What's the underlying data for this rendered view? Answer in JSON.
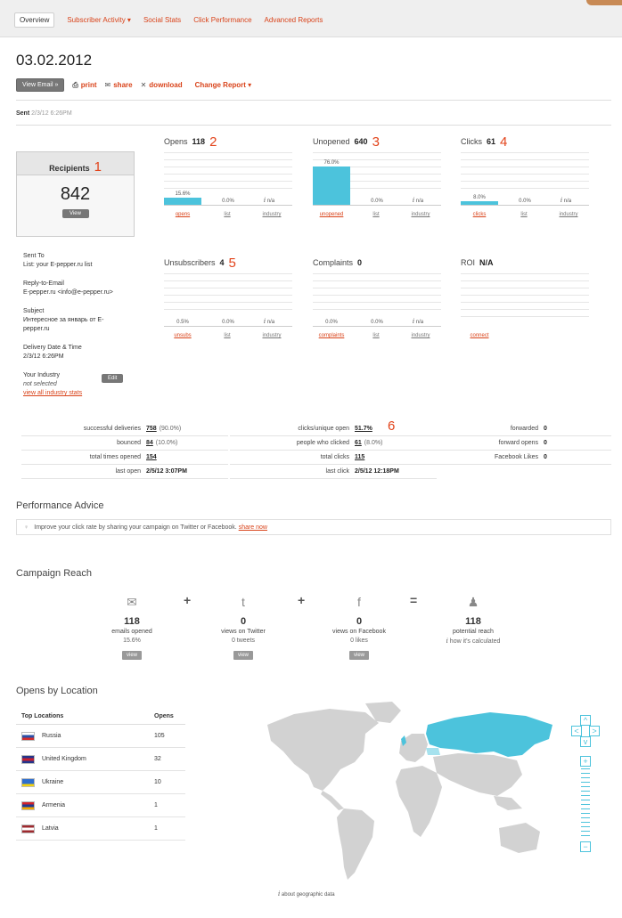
{
  "nav": {
    "tabs": [
      "Overview",
      "Subscriber Activity ▾",
      "Social Stats",
      "Click Performance",
      "Advanced Reports"
    ]
  },
  "header": {
    "date": "03.02.2012",
    "view_email": "View Email »",
    "print": "print",
    "share": "share",
    "download": "download",
    "change_report": "Change Report ▾",
    "sent_label": "Sent",
    "sent_value": "2/3/12 6:26PM"
  },
  "recipients": {
    "title": "Recipients",
    "marker": "1",
    "count": "842",
    "view": "View"
  },
  "stats": [
    {
      "title": "Opens",
      "value": "118",
      "marker": "2",
      "bar_percent": 15.6,
      "labels": [
        "15.6%",
        "0.0%",
        "n/a"
      ],
      "x": [
        "opens",
        "list",
        "industry"
      ]
    },
    {
      "title": "Unopened",
      "value": "640",
      "marker": "3",
      "bar_percent": 76.0,
      "labels": [
        "76.0%",
        "0.0%",
        "n/a"
      ],
      "x": [
        "unopened",
        "list",
        "industry"
      ]
    },
    {
      "title": "Clicks",
      "value": "61",
      "marker": "4",
      "bar_percent": 8.0,
      "labels": [
        "8.0%",
        "0.0%",
        "n/a"
      ],
      "x": [
        "clicks",
        "list",
        "industry"
      ]
    },
    {
      "title": "Unsubscribers",
      "value": "4",
      "marker": "5",
      "bar_percent": 0.5,
      "labels": [
        "0.5%",
        "0.0%",
        "n/a"
      ],
      "x": [
        "unsubs",
        "list",
        "industry"
      ]
    },
    {
      "title": "Complaints",
      "value": "0",
      "marker": "",
      "bar_percent": 0.0,
      "labels": [
        "0.0%",
        "0.0%",
        "n/a"
      ],
      "x": [
        "complaints",
        "list",
        "industry"
      ]
    },
    {
      "title": "ROI",
      "value": "N/A",
      "marker": "",
      "x": [
        "connect"
      ]
    }
  ],
  "details": {
    "sent_to_label": "Sent To",
    "sent_to": "List: your E-pepper.ru list",
    "reply_label": "Reply-to-Email",
    "reply": "E-pepper.ru <info@e-pepper.ru>",
    "subject_label": "Subject",
    "subject": "Интересное за январь от E-pepper.ru",
    "delivery_label": "Delivery Date & Time",
    "delivery": "2/3/12 6:26PM",
    "industry_label": "Your Industry",
    "industry": "not selected",
    "industry_link": "view all industry stats",
    "edit": "Edit"
  },
  "summary": {
    "col1": [
      [
        "successful deliveries",
        "758",
        "(90.0%)"
      ],
      [
        "bounced",
        "84",
        "(10.0%)"
      ],
      [
        "total times opened",
        "154",
        ""
      ],
      [
        "last open",
        "2/5/12 3:07PM",
        ""
      ]
    ],
    "col2": [
      [
        "clicks/unique open",
        "51.7%",
        ""
      ],
      [
        "people who clicked",
        "61",
        "(8.0%)"
      ],
      [
        "total clicks",
        "115",
        ""
      ],
      [
        "last click",
        "2/5/12 12:18PM",
        ""
      ]
    ],
    "col3": [
      [
        "forwarded",
        "0"
      ],
      [
        "forward opens",
        "0"
      ],
      [
        "Facebook Likes",
        "0"
      ]
    ],
    "marker": "6"
  },
  "advice": {
    "title": "Performance Advice",
    "text": "Improve your click rate by sharing your campaign on Twitter or Facebook.",
    "link": "share now"
  },
  "reach": {
    "title": "Campaign Reach",
    "items": [
      {
        "icon": "envelope-icon",
        "glyph": "✉",
        "num": "118",
        "label": "emails opened",
        "sub": "15.6%",
        "view": "view"
      },
      {
        "icon": "twitter-icon",
        "glyph": "t",
        "num": "0",
        "label": "views on Twitter",
        "sub": "0 tweets",
        "view": "view"
      },
      {
        "icon": "facebook-icon",
        "glyph": "f",
        "num": "0",
        "label": "views on Facebook",
        "sub": "0 likes",
        "view": "view"
      },
      {
        "icon": "people-icon",
        "glyph": "♟",
        "num": "118",
        "label": "potential reach",
        "sub": "how it's calculated",
        "view": ""
      }
    ],
    "plus": "+",
    "equals": "="
  },
  "locations": {
    "title": "Opens by Location",
    "col_loc": "Top Locations",
    "col_opens": "Opens",
    "rows": [
      {
        "country": "Russia",
        "opens": "105"
      },
      {
        "country": "United Kingdom",
        "opens": "32"
      },
      {
        "country": "Ukraine",
        "opens": "10"
      },
      {
        "country": "Armenia",
        "opens": "1"
      },
      {
        "country": "Latvia",
        "opens": "1"
      }
    ],
    "geo_note": "about geographic data"
  }
}
